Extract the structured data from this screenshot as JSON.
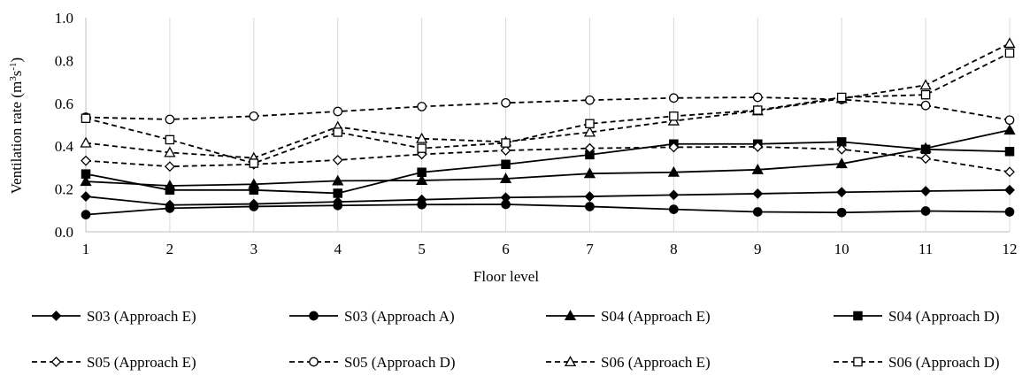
{
  "chart_data": {
    "type": "line",
    "xlabel": "Floor level",
    "ylabel": "Ventilation rate (m",
    "ylabel_sup1": "3",
    "ylabel_mid": "s",
    "ylabel_sup2": "-1",
    "ylabel_end": ")",
    "ylim": [
      0,
      1.0
    ],
    "ytick_labels": [
      "0.0",
      "0.2",
      "0.4",
      "0.6",
      "0.8",
      "1.0"
    ],
    "yticks": [
      0,
      0.2,
      0.4,
      0.6,
      0.8,
      1.0
    ],
    "x": [
      1,
      2,
      3,
      4,
      5,
      6,
      7,
      8,
      9,
      10,
      11,
      12
    ],
    "xtick_labels": [
      "1",
      "2",
      "3",
      "4",
      "5",
      "6",
      "7",
      "8",
      "9",
      "10",
      "11",
      "12"
    ],
    "grid": "vertical",
    "legend_position": "bottom",
    "series": [
      {
        "name": "S03 (Approach E)",
        "marker": "diamond",
        "dashed": false,
        "fill": "#000",
        "values": [
          0.165,
          0.125,
          0.13,
          0.14,
          0.15,
          0.16,
          0.165,
          0.172,
          0.178,
          0.185,
          0.19,
          0.195
        ]
      },
      {
        "name": "S03 (Approach A)",
        "marker": "circle",
        "dashed": false,
        "fill": "#000",
        "values": [
          0.08,
          0.11,
          0.118,
          0.123,
          0.127,
          0.128,
          0.118,
          0.105,
          0.093,
          0.09,
          0.097,
          0.093
        ]
      },
      {
        "name": "S04 (Approach E)",
        "marker": "triangle",
        "dashed": false,
        "fill": "#000",
        "values": [
          0.235,
          0.215,
          0.222,
          0.238,
          0.24,
          0.248,
          0.272,
          0.278,
          0.29,
          0.318,
          0.39,
          0.475
        ]
      },
      {
        "name": "S04 (Approach D)",
        "marker": "square",
        "dashed": false,
        "fill": "#000",
        "values": [
          0.27,
          0.195,
          0.195,
          0.18,
          0.278,
          0.315,
          0.36,
          0.41,
          0.41,
          0.42,
          0.385,
          0.375
        ]
      },
      {
        "name": "S05 (Approach E)",
        "marker": "diamond",
        "dashed": true,
        "fill": "#fff",
        "values": [
          0.332,
          0.305,
          0.315,
          0.335,
          0.362,
          0.38,
          0.39,
          0.395,
          0.397,
          0.385,
          0.342,
          0.28
        ]
      },
      {
        "name": "S05 (Approach D)",
        "marker": "circle",
        "dashed": true,
        "fill": "#fff",
        "values": [
          0.535,
          0.525,
          0.54,
          0.562,
          0.585,
          0.602,
          0.615,
          0.625,
          0.628,
          0.618,
          0.59,
          0.522
        ]
      },
      {
        "name": "S06 (Approach E)",
        "marker": "triangle",
        "dashed": true,
        "fill": "#fff",
        "values": [
          0.415,
          0.37,
          0.345,
          0.49,
          0.435,
          0.42,
          0.465,
          0.518,
          0.565,
          0.622,
          0.685,
          0.88
        ]
      },
      {
        "name": "S06 (Approach D)",
        "marker": "square",
        "dashed": true,
        "fill": "#fff",
        "values": [
          0.53,
          0.43,
          0.32,
          0.465,
          0.39,
          0.415,
          0.505,
          0.54,
          0.568,
          0.628,
          0.64,
          0.835
        ]
      }
    ]
  }
}
